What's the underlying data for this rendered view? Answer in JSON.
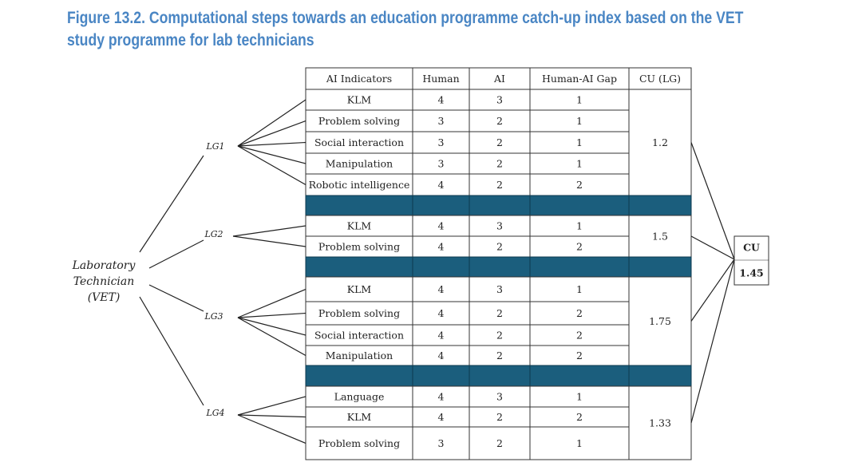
{
  "title": "Figure 13.2. Computational steps towards an education programme catch-up index based on the VET study programme for lab technicians",
  "root": {
    "lines": [
      "Laboratory",
      "Technician",
      "(VET)"
    ]
  },
  "table": {
    "columns": [
      "AI Indicators",
      "Human",
      "AI",
      "Human-AI Gap",
      "CU (LG)"
    ],
    "groups": [
      {
        "label": "LG1",
        "rows": [
          [
            "KLM",
            4,
            3,
            1
          ],
          [
            "Problem solving",
            3,
            2,
            1
          ],
          [
            "Social interaction",
            3,
            2,
            1
          ],
          [
            "Manipulation",
            3,
            2,
            1
          ],
          [
            "Robotic intelligence",
            4,
            2,
            2
          ]
        ],
        "cu": 1.2
      },
      {
        "label": "LG2",
        "rows": [
          [
            "KLM",
            4,
            3,
            1
          ],
          [
            "Problem solving",
            4,
            2,
            2
          ]
        ],
        "cu": 1.5
      },
      {
        "label": "LG3",
        "rows": [
          [
            "KLM",
            4,
            3,
            1
          ],
          [
            "Problem solving",
            4,
            2,
            2
          ],
          [
            "Social interaction",
            4,
            2,
            2
          ],
          [
            "Manipulation",
            4,
            2,
            2
          ]
        ],
        "cu": 1.75
      },
      {
        "label": "LG4",
        "rows": [
          [
            "Language",
            4,
            3,
            1
          ],
          [
            "KLM",
            4,
            2,
            2
          ],
          [
            "Problem solving",
            3,
            2,
            1
          ]
        ],
        "cu": 1.33
      }
    ]
  },
  "total": {
    "label": "CU",
    "value": 1.45
  }
}
